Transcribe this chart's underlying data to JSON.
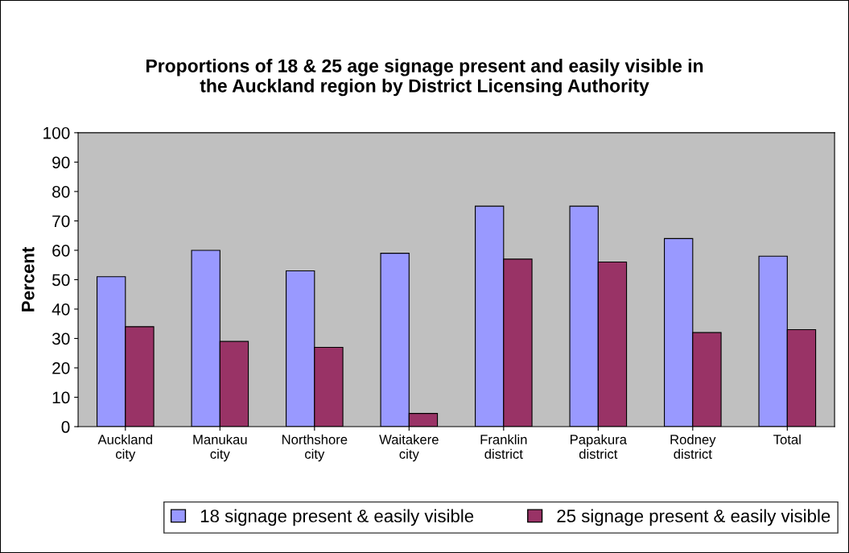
{
  "chart_data": {
    "type": "bar",
    "title": "Proportions of 18 & 25 age signage present and easily visible in\nthe Auckland region by District Licensing Authority",
    "ylabel": "Percent",
    "categories": [
      "Auckland\ncity",
      "Manukau\ncity",
      "Northshore\ncity",
      "Waitakere\ncity",
      "Franklin\ndistrict",
      "Papakura\ndistrict",
      "Rodney\ndistrict",
      "Total"
    ],
    "series": [
      {
        "name": "18 signage present & easily visible",
        "color": "#9999ff",
        "values": [
          51,
          60,
          53,
          59,
          75,
          75,
          64,
          58
        ]
      },
      {
        "name": "25 signage present & easily visible",
        "color": "#993366",
        "values": [
          34,
          29,
          27,
          4.5,
          57,
          56,
          32,
          33
        ]
      }
    ],
    "ylim": [
      0,
      100
    ],
    "yticks": [
      0,
      10,
      20,
      30,
      40,
      50,
      60,
      70,
      80,
      90,
      100
    ],
    "grid": false,
    "legend": "bottom"
  }
}
